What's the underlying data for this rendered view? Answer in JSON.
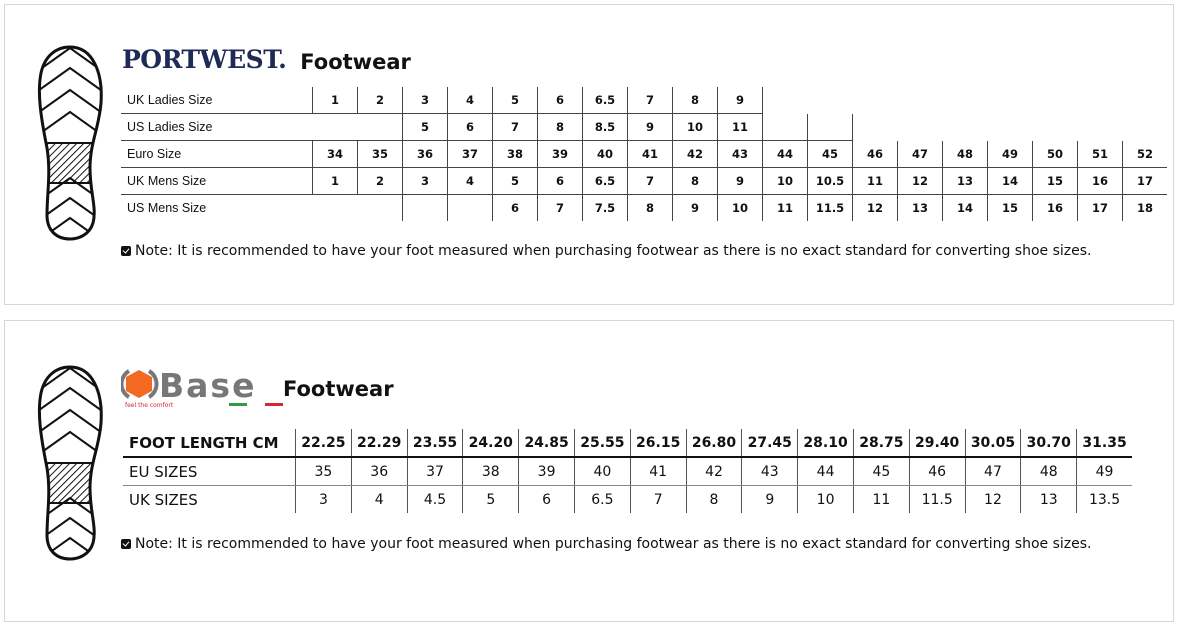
{
  "portwest": {
    "brand": "PORTWEST.",
    "title": "Footwear",
    "rows": [
      {
        "label": "UK Ladies Size",
        "values": [
          "1",
          "2",
          "3",
          "4",
          "5",
          "6",
          "6.5",
          "7",
          "8",
          "9",
          "",
          "",
          "",
          "",
          "",
          "",
          "",
          "",
          ""
        ]
      },
      {
        "label": "US Ladies Size",
        "values": [
          "",
          "",
          "5",
          "6",
          "7",
          "8",
          "8.5",
          "9",
          "10",
          "11",
          "",
          "",
          "",
          "",
          "",
          "",
          "",
          "",
          ""
        ]
      },
      {
        "label": "Euro Size",
        "values": [
          "34",
          "35",
          "36",
          "37",
          "38",
          "39",
          "40",
          "41",
          "42",
          "43",
          "44",
          "45",
          "46",
          "47",
          "48",
          "49",
          "50",
          "51",
          "52"
        ]
      },
      {
        "label": "UK Mens Size",
        "values": [
          "1",
          "2",
          "3",
          "4",
          "5",
          "6",
          "6.5",
          "7",
          "8",
          "9",
          "10",
          "10.5",
          "11",
          "12",
          "13",
          "14",
          "15",
          "16",
          "17"
        ]
      },
      {
        "label": "US Mens Size",
        "values": [
          "",
          "",
          "",
          "",
          "6",
          "7",
          "7.5",
          "8",
          "9",
          "10",
          "11",
          "11.5",
          "12",
          "13",
          "14",
          "15",
          "16",
          "17",
          "18"
        ]
      }
    ],
    "note": "Note: It is recommended to have your foot measured when purchasing footwear as there is no exact standard for converting shoe sizes."
  },
  "base": {
    "brand": "Base",
    "tagline": "feel the comfort",
    "title": "Footwear",
    "colors": {
      "orange": "#f26a21",
      "grey": "#777777",
      "green": "#2e9e3e",
      "red": "#d8262e"
    },
    "rows": [
      {
        "label": "FOOT LENGTH CM",
        "values": [
          "22.25",
          "22.29",
          "23.55",
          "24.20",
          "24.85",
          "25.55",
          "26.15",
          "26.80",
          "27.45",
          "28.10",
          "28.75",
          "29.40",
          "30.05",
          "30.70",
          "31.35"
        ]
      },
      {
        "label": "EU SIZES",
        "values": [
          "35",
          "36",
          "37",
          "38",
          "39",
          "40",
          "41",
          "42",
          "43",
          "44",
          "45",
          "46",
          "47",
          "48",
          "49"
        ]
      },
      {
        "label": "UK SIZES",
        "values": [
          "3",
          "4",
          "4.5",
          "5",
          "6",
          "6.5",
          "7",
          "8",
          "9",
          "10",
          "11",
          "11.5",
          "12",
          "13",
          "13.5"
        ]
      }
    ],
    "note": "Note: It is recommended to have your foot measured when purchasing footwear as there is no exact standard for converting shoe sizes."
  }
}
